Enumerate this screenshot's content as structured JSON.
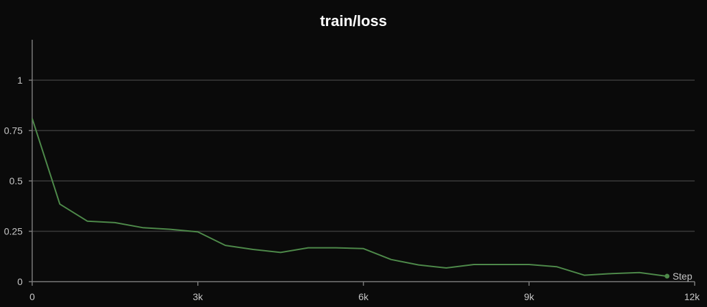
{
  "chart_data": {
    "type": "line",
    "title": "train/loss",
    "xlabel": "",
    "ylabel": "",
    "xlim": [
      0,
      12000
    ],
    "ylim": [
      0,
      1.2
    ],
    "x_ticks": [
      0,
      3000,
      6000,
      9000,
      12000
    ],
    "x_tick_labels": [
      "0",
      "3k",
      "6k",
      "9k",
      "12k"
    ],
    "y_ticks": [
      0,
      0.25,
      0.5,
      0.75,
      1
    ],
    "y_tick_labels": [
      "0",
      "0.25",
      "0.5",
      "0.75",
      "1"
    ],
    "grid": true,
    "legend_position": "end-of-line",
    "series": [
      {
        "name": "Step",
        "color": "#4e8a4a",
        "x": [
          0,
          500,
          1000,
          1500,
          2000,
          2500,
          3000,
          3500,
          4000,
          4500,
          5000,
          5500,
          6000,
          6500,
          7000,
          7500,
          8000,
          8500,
          9000,
          9500,
          10000,
          10500,
          11000,
          11500
        ],
        "y": [
          0.81,
          0.385,
          0.3,
          0.293,
          0.268,
          0.26,
          0.247,
          0.18,
          0.16,
          0.145,
          0.168,
          0.168,
          0.164,
          0.11,
          0.083,
          0.068,
          0.085,
          0.085,
          0.085,
          0.074,
          0.032,
          0.04,
          0.045,
          0.027
        ]
      }
    ]
  }
}
